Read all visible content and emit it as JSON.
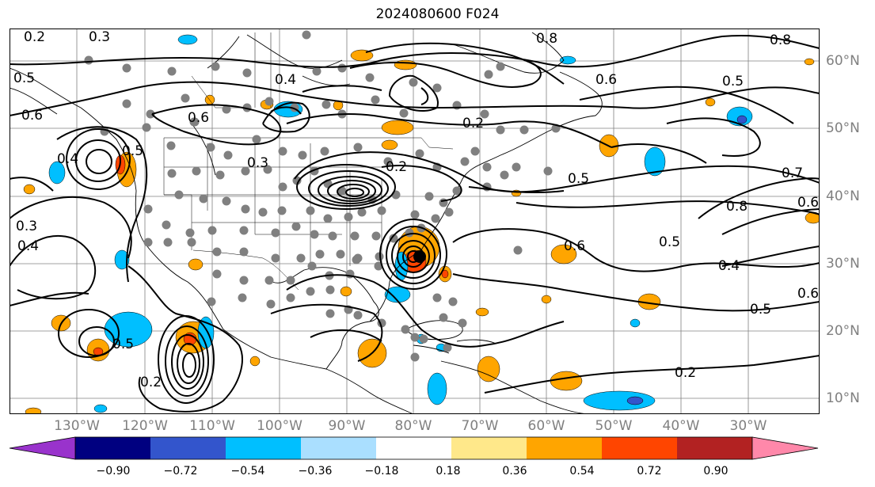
{
  "title": "2024080600 F024",
  "lon_labels": [
    "130°W",
    "120°W",
    "110°W",
    "100°W",
    "90°W",
    "80°W",
    "70°W",
    "60°W",
    "50°W",
    "40°W",
    "30°W"
  ],
  "lat_labels": [
    "60°N",
    "50°N",
    "40°N",
    "30°N",
    "20°N",
    "10°N"
  ],
  "colorbar": {
    "colors": [
      "#9933cc",
      "#000080",
      "#3355cc",
      "#00bfff",
      "#aadfff",
      "#ffffff",
      "#ffe88a",
      "#ffa500",
      "#ff4500",
      "#b22222",
      "#ff88aa"
    ],
    "ticks": [
      "−0.90",
      "−0.72",
      "−0.54",
      "−0.36",
      "−0.18",
      "0.18",
      "0.36",
      "0.54",
      "0.72",
      "0.90"
    ]
  },
  "contour_labels": [
    "0.2",
    "0.3",
    "0.5",
    "0.4",
    "0.6",
    "0.8",
    "0.5",
    "0.3",
    "0.4",
    "0.5",
    "0.6",
    "0.2",
    "0.5",
    "0.2",
    "0.6",
    "0.8",
    "0.4",
    "0.7",
    "0.5",
    "0.6",
    "0.8",
    "0.6",
    "0.4",
    "0.5",
    "0.6",
    "0.2",
    "0.5",
    "0.2",
    "0.3"
  ],
  "colors": {
    "land": "#000000",
    "grid": "#808080",
    "station": "#808080"
  }
}
